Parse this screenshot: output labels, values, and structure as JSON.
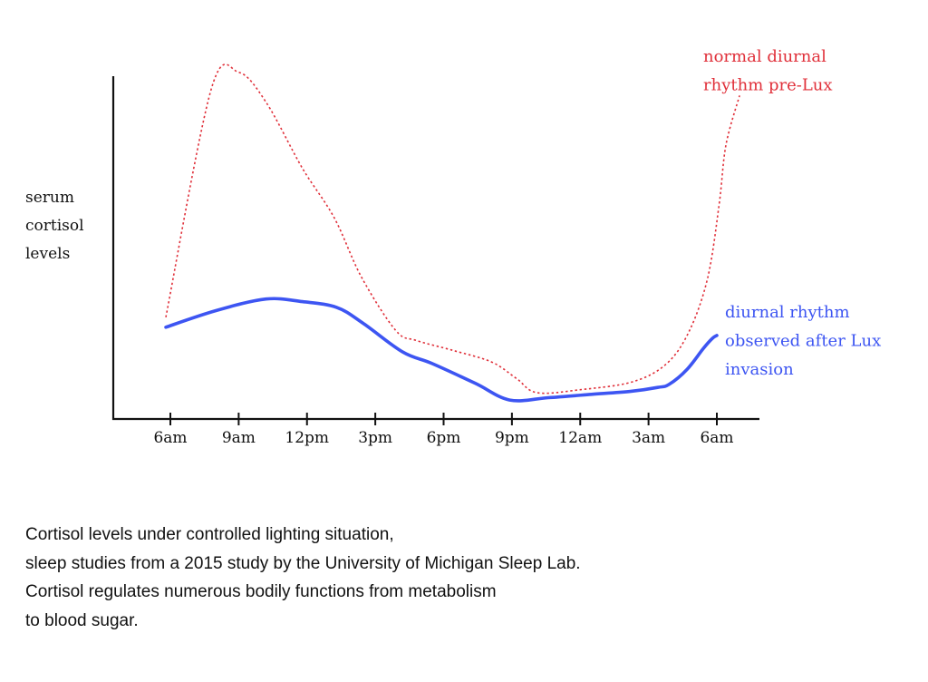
{
  "chart_data": {
    "type": "line",
    "ylabel": [
      "serum",
      "cortisol",
      "levels"
    ],
    "xlabel": "",
    "categories": [
      "6am",
      "9am",
      "12pm",
      "3pm",
      "6pm",
      "9pm",
      "12am",
      "3am",
      "6am"
    ],
    "x_hours": [
      0,
      3,
      6,
      9,
      12,
      15,
      18,
      21,
      24
    ],
    "ylim": [
      0,
      100
    ],
    "series": [
      {
        "name": "normal diurnal rhythm pre-Lux",
        "label_lines": [
          "normal diurnal",
          "rhythm pre-Lux"
        ],
        "color": "#e0303a",
        "style": "dotted",
        "points": [
          [
            -0.2,
            28
          ],
          [
            1.8,
            97
          ],
          [
            3.0,
            102
          ],
          [
            4.2,
            93
          ],
          [
            5.8,
            73
          ],
          [
            7.2,
            58
          ],
          [
            8.4,
            40
          ],
          [
            9.9,
            24
          ],
          [
            10.8,
            21
          ],
          [
            12.4,
            18
          ],
          [
            14.1,
            14.5
          ],
          [
            15.2,
            9.5
          ],
          [
            16.1,
            5.2
          ],
          [
            18.0,
            6.1
          ],
          [
            20.3,
            8.5
          ],
          [
            21.8,
            14
          ],
          [
            22.8,
            24
          ],
          [
            23.6,
            40
          ],
          [
            24.1,
            62
          ],
          [
            24.4,
            80
          ],
          [
            25.0,
            95
          ]
        ]
      },
      {
        "name": "diurnal rhythm observed after Lux invasion",
        "label_lines": [
          "diurnal rhythm",
          "observed after Lux",
          "invasion"
        ],
        "color": "#3d55f2",
        "style": "solid",
        "points": [
          [
            -0.2,
            25
          ],
          [
            2.0,
            30
          ],
          [
            4.2,
            33.5
          ],
          [
            5.8,
            32.7
          ],
          [
            7.3,
            31
          ],
          [
            8.5,
            26
          ],
          [
            10.2,
            17.5
          ],
          [
            11.5,
            14
          ],
          [
            13.4,
            8
          ],
          [
            14.9,
            3
          ],
          [
            16.6,
            3.7
          ],
          [
            18.5,
            4.7
          ],
          [
            20.2,
            5.6
          ],
          [
            21.4,
            6.8
          ],
          [
            21.9,
            7.7
          ],
          [
            22.7,
            12.3
          ],
          [
            23.4,
            18.5
          ],
          [
            23.8,
            21.6
          ],
          [
            24.0,
            22.5
          ]
        ]
      }
    ],
    "legend": "inline labels beside line ends (top-right and right)",
    "grid": false
  },
  "caption": [
    "Cortisol levels under controlled lighting situation,",
    "sleep studies from a 2015 study by the University of Michigan Sleep Lab.",
    "Cortisol regulates numerous bodily functions from metabolism",
    "to blood sugar."
  ]
}
